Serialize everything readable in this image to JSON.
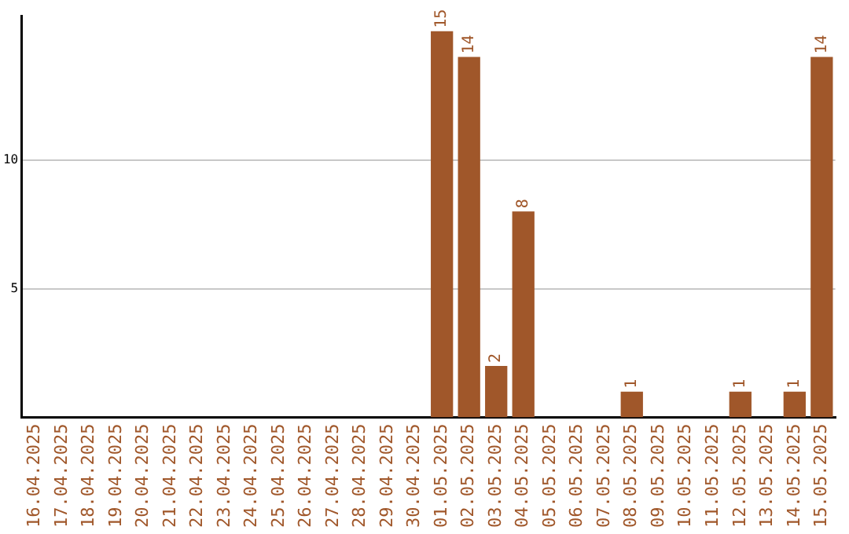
{
  "chart_data": {
    "type": "bar",
    "categories": [
      "16.04.2025",
      "17.04.2025",
      "18.04.2025",
      "19.04.2025",
      "20.04.2025",
      "21.04.2025",
      "22.04.2025",
      "23.04.2025",
      "24.04.2025",
      "25.04.2025",
      "26.04.2025",
      "27.04.2025",
      "28.04.2025",
      "29.04.2025",
      "30.04.2025",
      "01.05.2025",
      "02.05.2025",
      "03.05.2025",
      "04.05.2025",
      "05.05.2025",
      "06.05.2025",
      "07.05.2025",
      "08.05.2025",
      "09.05.2025",
      "10.05.2025",
      "11.05.2025",
      "12.05.2025",
      "13.05.2025",
      "14.05.2025",
      "15.05.2025"
    ],
    "values": [
      0,
      0,
      0,
      0,
      0,
      0,
      0,
      0,
      0,
      0,
      0,
      0,
      0,
      0,
      0,
      15,
      14,
      2,
      8,
      0,
      0,
      0,
      1,
      0,
      0,
      0,
      1,
      0,
      1,
      14
    ],
    "value_labels": [
      null,
      null,
      null,
      null,
      null,
      null,
      null,
      null,
      null,
      null,
      null,
      null,
      null,
      null,
      null,
      "15",
      "14",
      "2",
      "8",
      null,
      null,
      null,
      "1",
      null,
      null,
      null,
      "1",
      null,
      "1",
      "14"
    ],
    "color": "#a0572a",
    "ylim": [
      0,
      15.6
    ],
    "yticks": [
      5,
      10
    ],
    "grid": "y",
    "legend": false
  }
}
